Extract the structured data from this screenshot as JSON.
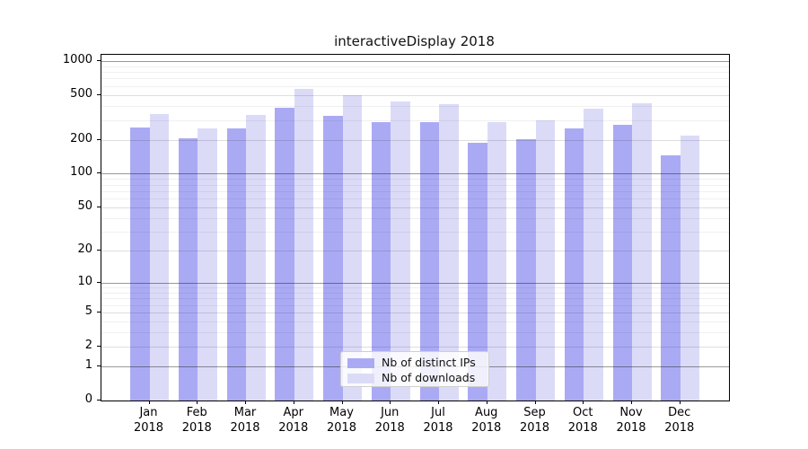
{
  "figure": {
    "title": "interactiveDisplay 2018"
  },
  "legend": {
    "items": [
      {
        "label": "Nb of distinct IPs",
        "color": "#aaaaf4"
      },
      {
        "label": "Nb of downloads",
        "color": "#dbdbf8"
      }
    ]
  },
  "axes": {
    "y_tick_labels": [
      "0",
      "1",
      "2",
      "5",
      "10",
      "20",
      "50",
      "100",
      "200",
      "500",
      "1000"
    ],
    "x_months": [
      "Jan",
      "Feb",
      "Mar",
      "Apr",
      "May",
      "Jun",
      "Jul",
      "Aug",
      "Sep",
      "Oct",
      "Nov",
      "Dec"
    ],
    "year": "2018"
  },
  "chart_data": {
    "type": "bar",
    "title": "interactiveDisplay 2018",
    "categories": [
      "Jan 2018",
      "Feb 2018",
      "Mar 2018",
      "Apr 2018",
      "May 2018",
      "Jun 2018",
      "Jul 2018",
      "Aug 2018",
      "Sep 2018",
      "Oct 2018",
      "Nov 2018",
      "Dec 2018"
    ],
    "series": [
      {
        "name": "Nb of distinct IPs",
        "color": "#aaaaf4",
        "values": [
          260,
          205,
          251,
          388,
          330,
          288,
          285,
          188,
          203,
          251,
          270,
          147
        ]
      },
      {
        "name": "Nb of downloads",
        "color": "#dbdbf8",
        "values": [
          337,
          251,
          331,
          563,
          498,
          436,
          418,
          286,
          298,
          380,
          425,
          217
        ]
      }
    ],
    "yscale": "symlog (y = log10(1+v))",
    "yticks": [
      0,
      1,
      2,
      5,
      10,
      20,
      50,
      100,
      200,
      500,
      1000
    ],
    "yticks_minor": [
      3,
      4,
      6,
      7,
      8,
      9,
      30,
      40,
      60,
      70,
      80,
      90,
      300,
      400,
      600,
      700,
      800,
      900
    ],
    "yticks_emphasized": [
      1,
      10,
      100,
      1000
    ],
    "ylim": [
      0,
      1136
    ],
    "xlabel": "",
    "ylabel": "",
    "grid": "horizontal, major+minor, drawn over bars",
    "legend_position": "lower center"
  }
}
